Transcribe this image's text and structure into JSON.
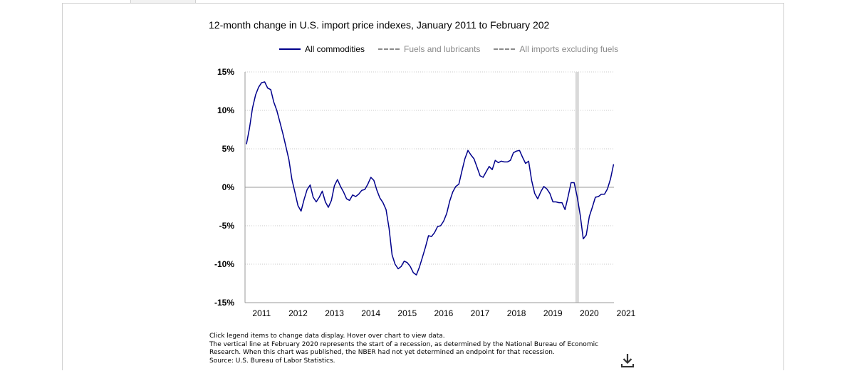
{
  "page": {
    "notes": [
      "Click legend items to change data display. Hover over chart to view data.",
      "The vertical line at February 2020 represents the start of a recession, as determined by the National Bureau of Economic",
      "Research. When this chart was published, the NBER had not yet determined an endpoint for that recession.",
      "Source: U.S. Bureau of Labor Statistics."
    ],
    "download_icon": "download-icon"
  },
  "legend": {
    "items": [
      {
        "label": "All commodities",
        "style": "solid",
        "active": true
      },
      {
        "label": "Fuels and lubricants",
        "style": "dashed",
        "active": false
      },
      {
        "label": "All imports excluding fuels",
        "style": "longdash",
        "active": false
      }
    ]
  },
  "chart_data": {
    "type": "line",
    "title": "12-month change in U.S. import price indexes, January 2011 to February 202",
    "xlabel": "",
    "ylabel": "",
    "ylim": [
      -15,
      15
    ],
    "y_ticks": [
      "15%",
      "10%",
      "5%",
      "0%",
      "-5%",
      "-10%",
      "-15%"
    ],
    "x_ticks": [
      "2011",
      "2012",
      "2013",
      "2014",
      "2015",
      "2016",
      "2017",
      "2018",
      "2019",
      "2020",
      "2021"
    ],
    "grid": "dotted horizontal",
    "recession_start": "2020-02",
    "colors": {
      "all_commodities": "#00008b",
      "recession": "#d9d9d9",
      "grid": "#c8c8c8",
      "zero_line": "#999999"
    },
    "series": [
      {
        "name": "All commodities",
        "start": "2011-01",
        "values": [
          5.6,
          7.7,
          10.3,
          12.0,
          13.0,
          13.6,
          13.7,
          12.9,
          12.7,
          11.1,
          10.0,
          8.5,
          7.0,
          5.3,
          3.6,
          1.0,
          -0.7,
          -2.4,
          -3.1,
          -1.6,
          -0.3,
          0.3,
          -1.3,
          -1.9,
          -1.3,
          -0.5,
          -1.9,
          -2.6,
          -1.7,
          0.2,
          1.0,
          0.1,
          -0.6,
          -1.5,
          -1.7,
          -1.0,
          -1.2,
          -0.9,
          -0.4,
          -0.3,
          0.4,
          1.3,
          0.9,
          -0.4,
          -1.4,
          -2.0,
          -2.9,
          -5.3,
          -8.8,
          -10.0,
          -10.6,
          -10.3,
          -9.6,
          -9.8,
          -10.3,
          -11.1,
          -11.4,
          -10.4,
          -9.1,
          -7.8,
          -6.3,
          -6.4,
          -5.9,
          -5.1,
          -5.0,
          -4.4,
          -3.4,
          -1.8,
          -0.6,
          0.1,
          0.4,
          2.1,
          3.7,
          4.8,
          4.2,
          3.7,
          2.6,
          1.5,
          1.3,
          2.0,
          2.7,
          2.3,
          3.5,
          3.2,
          3.4,
          3.3,
          3.3,
          3.5,
          4.5,
          4.7,
          4.8,
          3.9,
          3.1,
          3.4,
          0.9,
          -0.8,
          -1.5,
          -0.6,
          0.1,
          -0.2,
          -0.8,
          -1.9,
          -1.9,
          -2.0,
          -2.0,
          -2.9,
          -1.2,
          0.6,
          0.6,
          -1.2,
          -3.6,
          -6.7,
          -6.2,
          -3.8,
          -2.6,
          -1.3,
          -1.2,
          -0.9,
          -0.9,
          -0.2,
          1.1,
          3.0
        ]
      }
    ]
  }
}
